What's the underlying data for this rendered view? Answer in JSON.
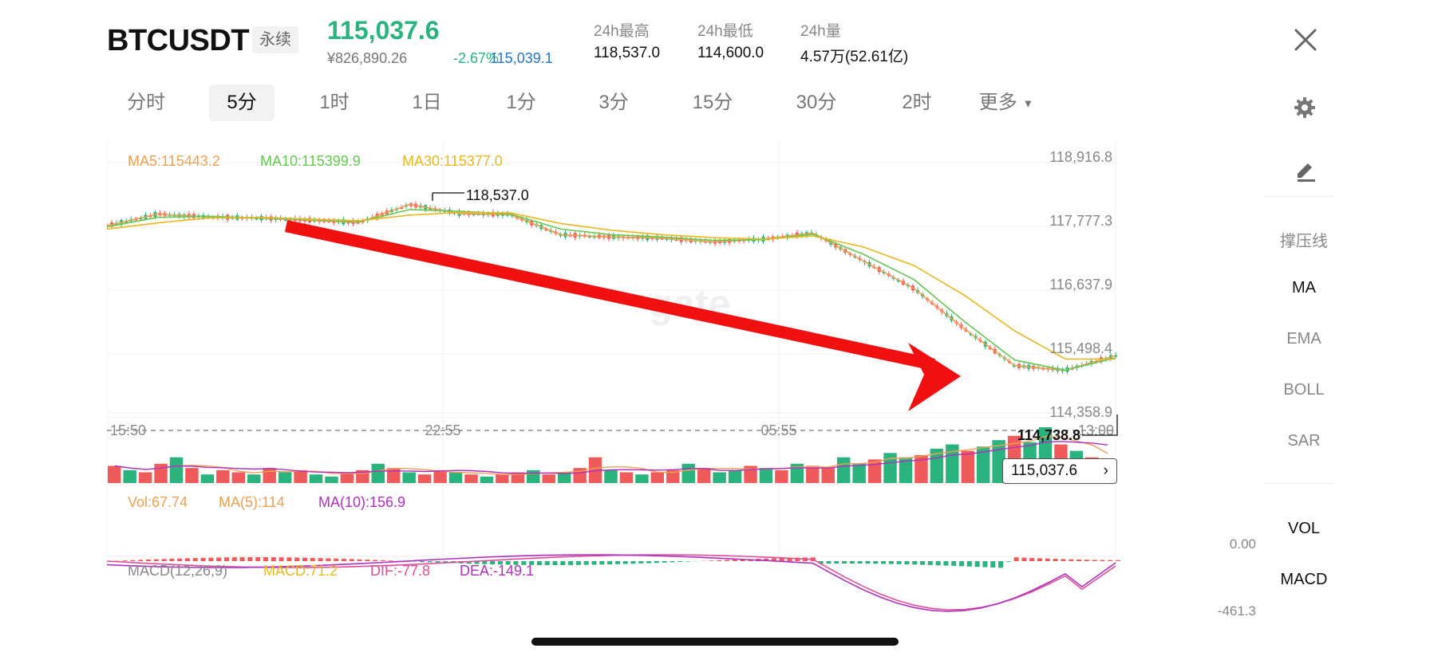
{
  "header": {
    "symbol": "BTCUSDT",
    "badge": "永续",
    "price": "115,037.6",
    "cny": "¥826,890.26",
    "change": "-2.67%",
    "mark_price": "115,039.1",
    "stats": [
      {
        "label": "24h最高",
        "value": "118,537.0"
      },
      {
        "label": "24h最低",
        "value": "114,600.0"
      },
      {
        "label": "24h量",
        "value": "4.57万(52.61亿)"
      }
    ]
  },
  "timeframes": [
    "分时",
    "5分",
    "1时",
    "1日",
    "1分",
    "3分",
    "15分",
    "30分",
    "2时",
    "更多"
  ],
  "active_timeframe": "5分",
  "sidebar": {
    "items": [
      "撑压线",
      "MA",
      "EMA",
      "BOLL",
      "SAR"
    ],
    "lower_items": [
      "VOL",
      "MACD"
    ],
    "active": [
      "MA",
      "VOL",
      "MACD"
    ]
  },
  "watermark": "gate",
  "colors": {
    "up": "#ef5b5b",
    "down": "#2bb37e",
    "ma5": "#f0a050",
    "ma10": "#65c850",
    "ma30": "#e8b820",
    "macd_dif": "#e0509a",
    "macd_dea": "#b030c0",
    "arrow": "#f01010"
  },
  "chart_data": {
    "type": "line",
    "title": "",
    "ma_legend": [
      {
        "name": "MA5",
        "text": "MA5:115443.2"
      },
      {
        "name": "MA10",
        "text": "MA10:115399.9"
      },
      {
        "name": "MA30",
        "text": "MA30:115377.0"
      }
    ],
    "y_ticks": [
      "118,916.8",
      "117,777.3",
      "116,637.9",
      "115,498.4",
      "114,358.9"
    ],
    "x_ticks": [
      "15:50",
      "22:55",
      "05:55",
      "13:00"
    ],
    "ylim": [
      114358.9,
      118916.8
    ],
    "high_label": "118,537.0",
    "low_label": "114,738.8",
    "last_price_label": "115,037.6",
    "series": [
      {
        "name": "MA5",
        "x": [
          0,
          5,
          10,
          15,
          20,
          25,
          30,
          35,
          40,
          45,
          50,
          55,
          60,
          65,
          70,
          75,
          80,
          85,
          90,
          95,
          100
        ],
        "values": [
          117760,
          117970,
          117920,
          117900,
          117860,
          117820,
          118140,
          117980,
          117960,
          117600,
          117560,
          117540,
          117470,
          117520,
          117630,
          117130,
          116640,
          115920,
          115260,
          115180,
          115440
        ]
      },
      {
        "name": "MA10",
        "x": [
          0,
          5,
          10,
          15,
          20,
          25,
          30,
          35,
          40,
          45,
          50,
          55,
          60,
          65,
          70,
          75,
          80,
          85,
          90,
          95,
          100
        ],
        "values": [
          117740,
          117910,
          117930,
          117900,
          117870,
          117830,
          118050,
          118020,
          117970,
          117700,
          117600,
          117560,
          117500,
          117510,
          117610,
          117250,
          116800,
          116050,
          115360,
          115180,
          115400
        ]
      },
      {
        "name": "MA30",
        "x": [
          0,
          5,
          10,
          15,
          20,
          25,
          30,
          35,
          40,
          45,
          50,
          55,
          60,
          65,
          70,
          75,
          80,
          85,
          90,
          95,
          100
        ],
        "values": [
          117700,
          117810,
          117900,
          117910,
          117880,
          117850,
          117950,
          118000,
          117990,
          117800,
          117680,
          117600,
          117550,
          117520,
          117580,
          117380,
          117050,
          116520,
          115880,
          115380,
          115377
        ]
      }
    ],
    "volume_legend": {
      "vol": "Vol:67.74",
      "ma5": "MA(5):114",
      "ma10": "MA(10):156.9",
      "right_label": "0.00"
    },
    "macd_legend": {
      "title": "MACD(12,26,9)",
      "macd": "MACD:71.2",
      "dif": "DIF:-77.8",
      "dea": "DEA:-149.1",
      "right_label": "-461.3"
    },
    "volume_values": [
      40,
      30,
      25,
      45,
      60,
      35,
      20,
      30,
      25,
      20,
      35,
      25,
      30,
      20,
      15,
      25,
      30,
      45,
      35,
      25,
      20,
      30,
      25,
      20,
      15,
      20,
      25,
      30,
      20,
      25,
      35,
      60,
      30,
      25,
      20,
      25,
      30,
      45,
      35,
      25,
      30,
      40,
      35,
      30,
      45,
      40,
      35,
      60,
      45,
      55,
      70,
      60,
      65,
      80,
      90,
      75,
      85,
      100,
      110,
      95,
      130,
      90,
      75,
      60,
      50
    ],
    "volume_up": [
      1,
      0,
      1,
      1,
      0,
      1,
      0,
      1,
      1,
      0,
      1,
      0,
      1,
      0,
      0,
      1,
      1,
      0,
      1,
      0,
      1,
      1,
      0,
      1,
      0,
      1,
      1,
      0,
      1,
      0,
      1,
      1,
      0,
      1,
      0,
      1,
      1,
      0,
      1,
      0,
      0,
      1,
      0,
      1,
      0,
      1,
      1,
      0,
      0,
      1,
      0,
      0,
      1,
      0,
      0,
      1,
      0,
      0,
      1,
      0,
      0,
      1,
      0,
      1,
      1
    ]
  }
}
